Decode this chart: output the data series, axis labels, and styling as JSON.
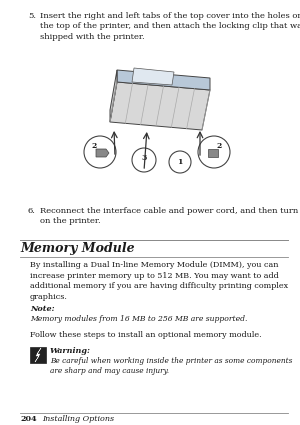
{
  "bg_color": "#ffffff",
  "page_bg": "#ffffff",
  "step5_num": "5.",
  "step5_text": "Insert the right and left tabs of the top cover into the holes on\nthe top of the printer, and then attach the locking clip that was\nshipped with the printer.",
  "step6_num": "6.",
  "step6_text": "Reconnect the interface cable and power cord, and then turn\non the printer.",
  "section_title": "Memory Module",
  "body_text": "By installing a Dual In-line Memory Module (DIMM), you can\nincrease printer memory up to 512 MB. You may want to add\nadditional memory if you are having difficulty printing complex\ngraphics.",
  "note_label": "Note:",
  "note_text": "Memory modules from 16 MB to 256 MB are supported.",
  "follow_text": "Follow these steps to install an optional memory module.",
  "warning_label": "Warning:",
  "warning_text": "Be careful when working inside the printer as some components\nare sharp and may cause injury.",
  "footer_page": "204",
  "footer_text": "Installing Options",
  "text_color": "#1a1a1a",
  "line_color": "#888888"
}
